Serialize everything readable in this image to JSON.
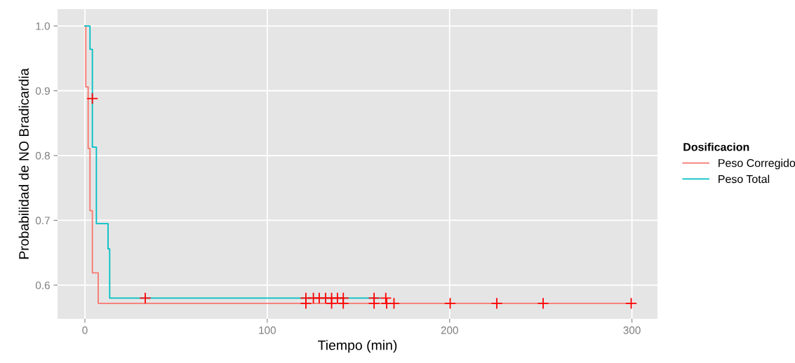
{
  "chart_data": {
    "type": "step",
    "xlabel": "Tiempo (min)",
    "ylabel": "Probabilidad de NO Bradicardia",
    "legend_title": "Dosificacion",
    "legend": "right",
    "grid": true,
    "xlim": [
      -15,
      314
    ],
    "xticks": [
      0,
      100,
      200,
      300
    ],
    "ylim": [
      0.548,
      1.026
    ],
    "yticks": [
      {
        "value": 0.6,
        "label": "0.6"
      },
      {
        "value": 0.7,
        "label": "0.7"
      },
      {
        "value": 0.8,
        "label": "0.8"
      },
      {
        "value": 0.9,
        "label": "0.9"
      },
      {
        "value": 1.0,
        "label": "1.0"
      }
    ],
    "series": [
      {
        "name": "Peso Corregido",
        "color": "#f8766d",
        "x": [
          0,
          0.5,
          1.8,
          2.8,
          4.1,
          7.3,
          300
        ],
        "values": [
          1.0,
          0.906,
          0.811,
          0.715,
          0.619,
          0.572,
          0.572
        ]
      },
      {
        "name": "Peso Total",
        "color": "#00bfc4",
        "x": [
          0,
          2.8,
          4.1,
          6.3,
          12.7,
          13.6,
          161.8
        ],
        "values": [
          1.0,
          0.964,
          0.813,
          0.695,
          0.656,
          0.58,
          0.58
        ]
      },
      {
        "type": "scatter",
        "marker": "cross",
        "color": "#ff0000",
        "x": [
          4.1,
          33.1,
          121.2,
          125.3,
          128.5,
          132,
          135.3,
          138.5,
          141.7,
          158.6,
          165
        ],
        "values": [
          0.888,
          0.58,
          0.58,
          0.58,
          0.58,
          0.58,
          0.58,
          0.58,
          0.58,
          0.58,
          0.58
        ]
      },
      {
        "type": "scatter",
        "marker": "cross",
        "color": "#ff0000",
        "x": [
          121.2,
          135.3,
          141.7,
          158.6,
          165.5,
          169.5,
          200.3,
          225.9,
          251.3,
          299.6
        ],
        "values": [
          0.572,
          0.572,
          0.572,
          0.572,
          0.572,
          0.572,
          0.572,
          0.572,
          0.572,
          0.572
        ]
      }
    ]
  }
}
